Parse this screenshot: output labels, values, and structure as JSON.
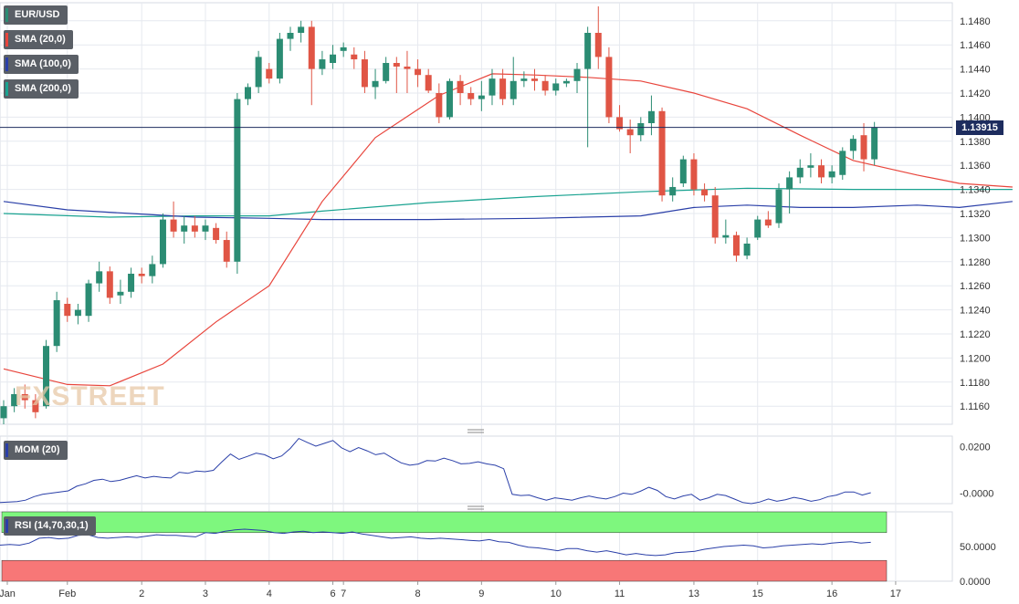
{
  "symbol_tag": "EUR/USD",
  "legend": [
    {
      "label": "SMA (20,0)",
      "color": "#e8453c"
    },
    {
      "label": "SMA (100,0)",
      "color": "#2a3fa8"
    },
    {
      "label": "SMA (200,0)",
      "color": "#1aa391"
    }
  ],
  "last_price_label": "1.13915",
  "watermark": "FXSTREET",
  "mom_tag": "MOM (20)",
  "rsi_tag": "RSI (14,70,30,1)",
  "colors": {
    "up": "#2b8c73",
    "down": "#e05545",
    "sma20": "#e8453c",
    "sma100": "#2a3fa8",
    "sma200": "#1aa391",
    "mom": "#2a3fa8",
    "rsi": "#2a3fa8",
    "rsi_over": "#7ef77e",
    "rsi_under": "#f77777",
    "grid": "#e6e9ef"
  },
  "chart_data": [
    {
      "type": "candlestick",
      "title": "EUR/USD",
      "ylim": [
        1.1145,
        1.1495
      ],
      "yticks": [
        "1.1480",
        "1.1460",
        "1.1440",
        "1.1420",
        "1.1400",
        "1.1380",
        "1.1360",
        "1.1340",
        "1.1320",
        "1.1300",
        "1.1280",
        "1.1260",
        "1.1240",
        "1.1220",
        "1.1200",
        "1.1180",
        "1.1160"
      ],
      "x_tick_labels": [
        "Jan",
        "Feb",
        "2",
        "3",
        "4",
        "6",
        "7",
        "8",
        "9",
        "10",
        "11",
        "13",
        "15",
        "16",
        "17"
      ],
      "last_price": 1.13915,
      "candles": [
        [
          1.115,
          1.1165,
          1.1145,
          1.116
        ],
        [
          1.116,
          1.1175,
          1.1155,
          1.117
        ],
        [
          1.117,
          1.1178,
          1.1158,
          1.1165
        ],
        [
          1.1165,
          1.117,
          1.115,
          1.1155
        ],
        [
          1.116,
          1.1215,
          1.1158,
          1.121
        ],
        [
          1.121,
          1.1255,
          1.1205,
          1.1248
        ],
        [
          1.1245,
          1.125,
          1.123,
          1.1235
        ],
        [
          1.1235,
          1.1245,
          1.1228,
          1.124
        ],
        [
          1.1235,
          1.1265,
          1.123,
          1.1262
        ],
        [
          1.1262,
          1.128,
          1.1255,
          1.1272
        ],
        [
          1.1272,
          1.1276,
          1.1245,
          1.125
        ],
        [
          1.1252,
          1.1265,
          1.1245,
          1.1255
        ],
        [
          1.1255,
          1.1275,
          1.125,
          1.127
        ],
        [
          1.127,
          1.1275,
          1.1262,
          1.1268
        ],
        [
          1.1268,
          1.1285,
          1.1262,
          1.1278
        ],
        [
          1.1278,
          1.132,
          1.1275,
          1.1315
        ],
        [
          1.1315,
          1.133,
          1.13,
          1.1305
        ],
        [
          1.1305,
          1.1318,
          1.1295,
          1.131
        ],
        [
          1.131,
          1.1318,
          1.13,
          1.1305
        ],
        [
          1.1305,
          1.1315,
          1.1298,
          1.131
        ],
        [
          1.1308,
          1.1312,
          1.1295,
          1.1298
        ],
        [
          1.1298,
          1.1305,
          1.1275,
          1.128
        ],
        [
          1.128,
          1.142,
          1.127,
          1.1415
        ],
        [
          1.1415,
          1.1428,
          1.141,
          1.1425
        ],
        [
          1.1425,
          1.1455,
          1.142,
          1.145
        ],
        [
          1.144,
          1.1445,
          1.1428,
          1.1432
        ],
        [
          1.1432,
          1.147,
          1.1428,
          1.1465
        ],
        [
          1.1465,
          1.1475,
          1.1455,
          1.147
        ],
        [
          1.147,
          1.148,
          1.1462,
          1.1475
        ],
        [
          1.1475,
          1.148,
          1.141,
          1.144
        ],
        [
          1.144,
          1.1455,
          1.1435,
          1.1448
        ],
        [
          1.1445,
          1.146,
          1.144,
          1.1452
        ],
        [
          1.1455,
          1.1462,
          1.145,
          1.1458
        ],
        [
          1.1452,
          1.1458,
          1.144,
          1.1448
        ],
        [
          1.1448,
          1.1455,
          1.142,
          1.1425
        ],
        [
          1.1425,
          1.144,
          1.1415,
          1.143
        ],
        [
          1.143,
          1.145,
          1.1428,
          1.1445
        ],
        [
          1.1445,
          1.145,
          1.142,
          1.1442
        ],
        [
          1.1442,
          1.1455,
          1.142,
          1.144
        ],
        [
          1.144,
          1.1448,
          1.1425,
          1.1435
        ],
        [
          1.1435,
          1.144,
          1.142,
          1.1422
        ],
        [
          1.142,
          1.1428,
          1.1395,
          1.14
        ],
        [
          1.14,
          1.1432,
          1.1398,
          1.143
        ],
        [
          1.143,
          1.1435,
          1.141,
          1.142
        ],
        [
          1.142,
          1.1425,
          1.141,
          1.1415
        ],
        [
          1.1415,
          1.143,
          1.1405,
          1.1418
        ],
        [
          1.1418,
          1.144,
          1.141,
          1.1432
        ],
        [
          1.1432,
          1.144,
          1.141,
          1.1415
        ],
        [
          1.1415,
          1.145,
          1.141,
          1.143
        ],
        [
          1.143,
          1.1438,
          1.1425,
          1.1432
        ],
        [
          1.1432,
          1.144,
          1.1422,
          1.143
        ],
        [
          1.143,
          1.1435,
          1.1418,
          1.1422
        ],
        [
          1.1422,
          1.1432,
          1.1418,
          1.1428
        ],
        [
          1.1428,
          1.1432,
          1.1425,
          1.143
        ],
        [
          1.143,
          1.1445,
          1.142,
          1.144
        ],
        [
          1.144,
          1.1475,
          1.1375,
          1.147
        ],
        [
          1.147,
          1.1492,
          1.144,
          1.145
        ],
        [
          1.145,
          1.1458,
          1.1395,
          1.14
        ],
        [
          1.14,
          1.141,
          1.1388,
          1.139
        ],
        [
          1.139,
          1.1398,
          1.137,
          1.1385
        ],
        [
          1.1385,
          1.14,
          1.138,
          1.1395
        ],
        [
          1.1395,
          1.1418,
          1.1385,
          1.1405
        ],
        [
          1.1405,
          1.1408,
          1.133,
          1.1335
        ],
        [
          1.1335,
          1.135,
          1.133,
          1.1342
        ],
        [
          1.1345,
          1.1368,
          1.1342,
          1.1365
        ],
        [
          1.1365,
          1.137,
          1.1335,
          1.134
        ],
        [
          1.134,
          1.1345,
          1.133,
          1.1335
        ],
        [
          1.1335,
          1.1342,
          1.1295,
          1.13
        ],
        [
          1.13,
          1.1315,
          1.1295,
          1.1302
        ],
        [
          1.1302,
          1.1305,
          1.128,
          1.1285
        ],
        [
          1.1285,
          1.13,
          1.1282,
          1.1295
        ],
        [
          1.13,
          1.1318,
          1.1298,
          1.1315
        ],
        [
          1.1315,
          1.1322,
          1.1308,
          1.131
        ],
        [
          1.1312,
          1.1345,
          1.1308,
          1.134
        ],
        [
          1.134,
          1.1355,
          1.132,
          1.135
        ],
        [
          1.135,
          1.1365,
          1.1345,
          1.1358
        ],
        [
          1.1358,
          1.137,
          1.135,
          1.136
        ],
        [
          1.136,
          1.1365,
          1.1345,
          1.135
        ],
        [
          1.135,
          1.136,
          1.1345,
          1.1355
        ],
        [
          1.1352,
          1.1375,
          1.1348,
          1.1372
        ],
        [
          1.1372,
          1.1385,
          1.1365,
          1.1382
        ],
        [
          1.1385,
          1.1395,
          1.1355,
          1.1365
        ],
        [
          1.1365,
          1.1396,
          1.136,
          1.13915
        ]
      ],
      "sma20": [
        [
          0,
          1.1191
        ],
        [
          6,
          1.1178
        ],
        [
          10,
          1.1177
        ],
        [
          15,
          1.1195
        ],
        [
          20,
          1.123
        ],
        [
          25,
          1.126
        ],
        [
          30,
          1.133
        ],
        [
          35,
          1.1383
        ],
        [
          41,
          1.1418
        ],
        [
          46,
          1.1436
        ],
        [
          50,
          1.1435
        ],
        [
          55,
          1.1433
        ],
        [
          60,
          1.143
        ],
        [
          65,
          1.142
        ],
        [
          70,
          1.1407
        ],
        [
          75,
          1.1385
        ],
        [
          80,
          1.1364
        ],
        [
          86,
          1.1352
        ],
        [
          90,
          1.1345
        ],
        [
          95,
          1.1342
        ]
      ],
      "sma100": [
        [
          0,
          1.133
        ],
        [
          6,
          1.1323
        ],
        [
          12,
          1.132
        ],
        [
          18,
          1.1317
        ],
        [
          25,
          1.1316
        ],
        [
          30,
          1.1315
        ],
        [
          40,
          1.1315
        ],
        [
          50,
          1.1316
        ],
        [
          60,
          1.1318
        ],
        [
          65,
          1.1325
        ],
        [
          70,
          1.1327
        ],
        [
          75,
          1.1325
        ],
        [
          80,
          1.1325
        ],
        [
          86,
          1.1327
        ],
        [
          90,
          1.1325
        ],
        [
          95,
          1.133
        ]
      ],
      "sma200": [
        [
          0,
          1.132
        ],
        [
          10,
          1.1317
        ],
        [
          18,
          1.1318
        ],
        [
          25,
          1.1318
        ],
        [
          30,
          1.1322
        ],
        [
          40,
          1.1329
        ],
        [
          50,
          1.1334
        ],
        [
          60,
          1.1338
        ],
        [
          70,
          1.1341
        ],
        [
          80,
          1.134
        ],
        [
          90,
          1.134
        ],
        [
          95,
          1.134
        ]
      ]
    },
    {
      "type": "line",
      "title": "MOM (20)",
      "ylim": [
        -0.0045,
        0.0245
      ],
      "yticks": [
        "0.0200",
        "-0.0000"
      ],
      "values": [
        -0.004,
        -0.0038,
        -0.0036,
        -0.003,
        -0.0015,
        -0.0005,
        0.0,
        0.0005,
        0.001,
        0.003,
        0.004,
        0.0055,
        0.006,
        0.005,
        0.0055,
        0.0065,
        0.0075,
        0.0065,
        0.0072,
        0.0068,
        0.0065,
        0.009,
        0.0085,
        0.0095,
        0.0092,
        0.0098,
        0.0135,
        0.0168,
        0.0145,
        0.0158,
        0.0172,
        0.0165,
        0.0148,
        0.016,
        0.0192,
        0.0235,
        0.0218,
        0.0202,
        0.0214,
        0.0226,
        0.0195,
        0.0178,
        0.0196,
        0.0182,
        0.0165,
        0.0172,
        0.015,
        0.013,
        0.012,
        0.0125,
        0.014,
        0.0138,
        0.015,
        0.014,
        0.0126,
        0.0128,
        0.0135,
        0.0126,
        0.012,
        0.0105,
        -0.0005,
        -0.001,
        -0.0008,
        -0.002,
        -0.003,
        -0.002,
        -0.0025,
        -0.003,
        -0.002,
        -0.0012,
        -0.002,
        -0.0025,
        -0.0015,
        0.0,
        -0.0005,
        0.0008,
        0.0025,
        0.0012,
        -0.0015,
        -0.0025,
        -0.0012,
        -0.0005,
        -0.003,
        -0.002,
        -0.0005,
        -0.001,
        -0.0025,
        -0.004,
        -0.0045,
        -0.0038,
        -0.0025,
        -0.0035,
        -0.0028,
        -0.0018,
        -0.0025,
        -0.0035,
        -0.0028,
        -0.0015,
        -0.0008,
        0.0005,
        0.0005,
        -0.0008,
        0.0002
      ]
    },
    {
      "type": "line",
      "title": "RSI (14,70,30,1)",
      "ylim": [
        0,
        100
      ],
      "overbought": 70,
      "oversold": 30,
      "yticks": [
        "50.0000",
        "0.0000"
      ],
      "values": [
        52,
        53,
        52,
        55,
        62,
        63,
        61,
        62,
        66,
        67,
        63,
        62,
        63,
        64,
        63,
        65,
        67,
        66,
        66,
        65,
        64,
        70,
        69,
        72,
        74,
        75,
        74,
        73,
        70,
        69,
        71,
        72,
        70,
        71,
        70,
        69,
        71,
        68,
        66,
        64,
        62,
        63,
        64,
        62,
        61,
        62,
        61,
        60,
        59,
        58,
        60,
        57,
        56,
        52,
        49,
        48,
        46,
        44,
        47,
        47,
        44,
        42,
        44,
        41,
        38,
        40,
        38,
        37,
        38,
        41,
        42,
        43,
        46,
        48,
        50,
        51,
        52,
        51,
        48,
        49,
        51,
        52,
        53,
        54,
        53,
        55,
        56,
        57,
        55,
        56
      ]
    }
  ]
}
